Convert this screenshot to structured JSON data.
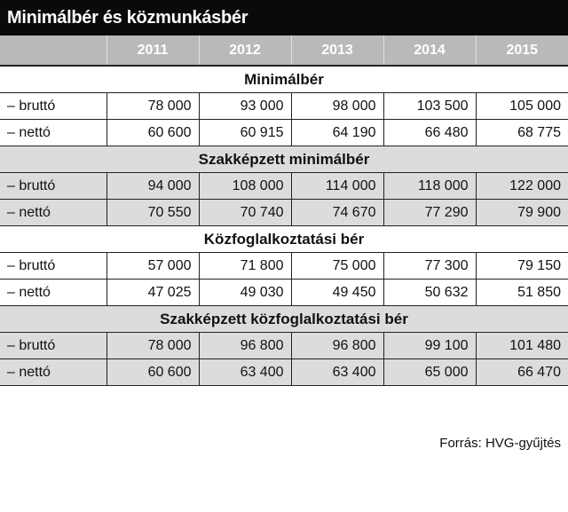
{
  "title": "Minimálbér és közmunkásbér",
  "source": "Forrás: HVG-gyűjtés",
  "chart_data": {
    "type": "table",
    "columns": [
      "2011",
      "2012",
      "2013",
      "2014",
      "2015"
    ],
    "sections": [
      {
        "title": "Minimálbér",
        "rows": [
          {
            "label": "– bruttó",
            "values": [
              "78 000",
              "93 000",
              "98 000",
              "103 500",
              "105 000"
            ]
          },
          {
            "label": "– nettó",
            "values": [
              "60 600",
              "60 915",
              "64 190",
              "66 480",
              "68 775"
            ]
          }
        ]
      },
      {
        "title": "Szakképzett minimálbér",
        "rows": [
          {
            "label": "– bruttó",
            "values": [
              "94 000",
              "108 000",
              "114 000",
              "118 000",
              "122 000"
            ]
          },
          {
            "label": "– nettó",
            "values": [
              "70 550",
              "70 740",
              "74 670",
              "77 290",
              "79 900"
            ]
          }
        ]
      },
      {
        "title": "Közfoglalkoztatási bér",
        "rows": [
          {
            "label": "– bruttó",
            "values": [
              "57 000",
              "71 800",
              "75 000",
              "77 300",
              "79 150"
            ]
          },
          {
            "label": "– nettó",
            "values": [
              "47 025",
              "49 030",
              "49 450",
              "50 632",
              "51 850"
            ]
          }
        ]
      },
      {
        "title": "Szakképzett közfoglalkoztatási bér",
        "rows": [
          {
            "label": "– bruttó",
            "values": [
              "78 000",
              "96 800",
              "96 800",
              "99 100",
              "101 480"
            ]
          },
          {
            "label": "– nettó",
            "values": [
              "60 600",
              "63 400",
              "63 400",
              "65 000",
              "66 470"
            ]
          }
        ]
      }
    ]
  }
}
